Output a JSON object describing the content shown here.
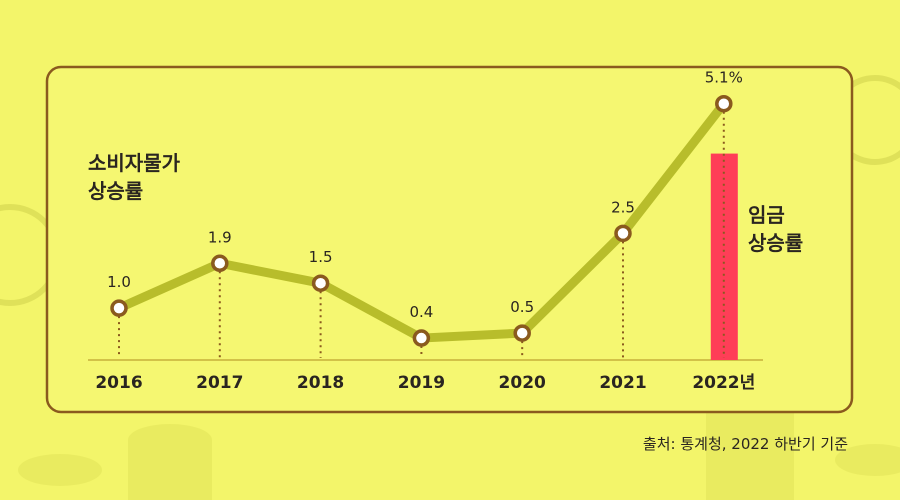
{
  "chart_data": {
    "type": "line",
    "categories": [
      "2016",
      "2017",
      "2018",
      "2019",
      "2020",
      "2021",
      "2022년"
    ],
    "series": [
      {
        "name": "소비자물가 상승률",
        "values": [
          1.0,
          1.9,
          1.5,
          0.4,
          0.5,
          2.5,
          5.1
        ]
      }
    ],
    "value_labels": [
      "1.0",
      "1.9",
      "1.5",
      "0.4",
      "0.5",
      "2.5",
      "5.1%"
    ],
    "ylim": [
      0,
      7
    ],
    "grid": false,
    "overlay_bar": {
      "name": "임금 상승률",
      "category": "2022년",
      "value": 4.1
    },
    "colors": {
      "line": "#b8bd2b",
      "marker_stroke": "#8a5a1e",
      "bar": "#ff3e57",
      "background": "#f3f56a"
    }
  },
  "labels": {
    "cpi_line1": "소비자물가",
    "cpi_line2": "상승률",
    "wage_line1": "임금",
    "wage_line2": "상승률"
  },
  "source": "출처: 통계청, 2022 하반기 기준"
}
